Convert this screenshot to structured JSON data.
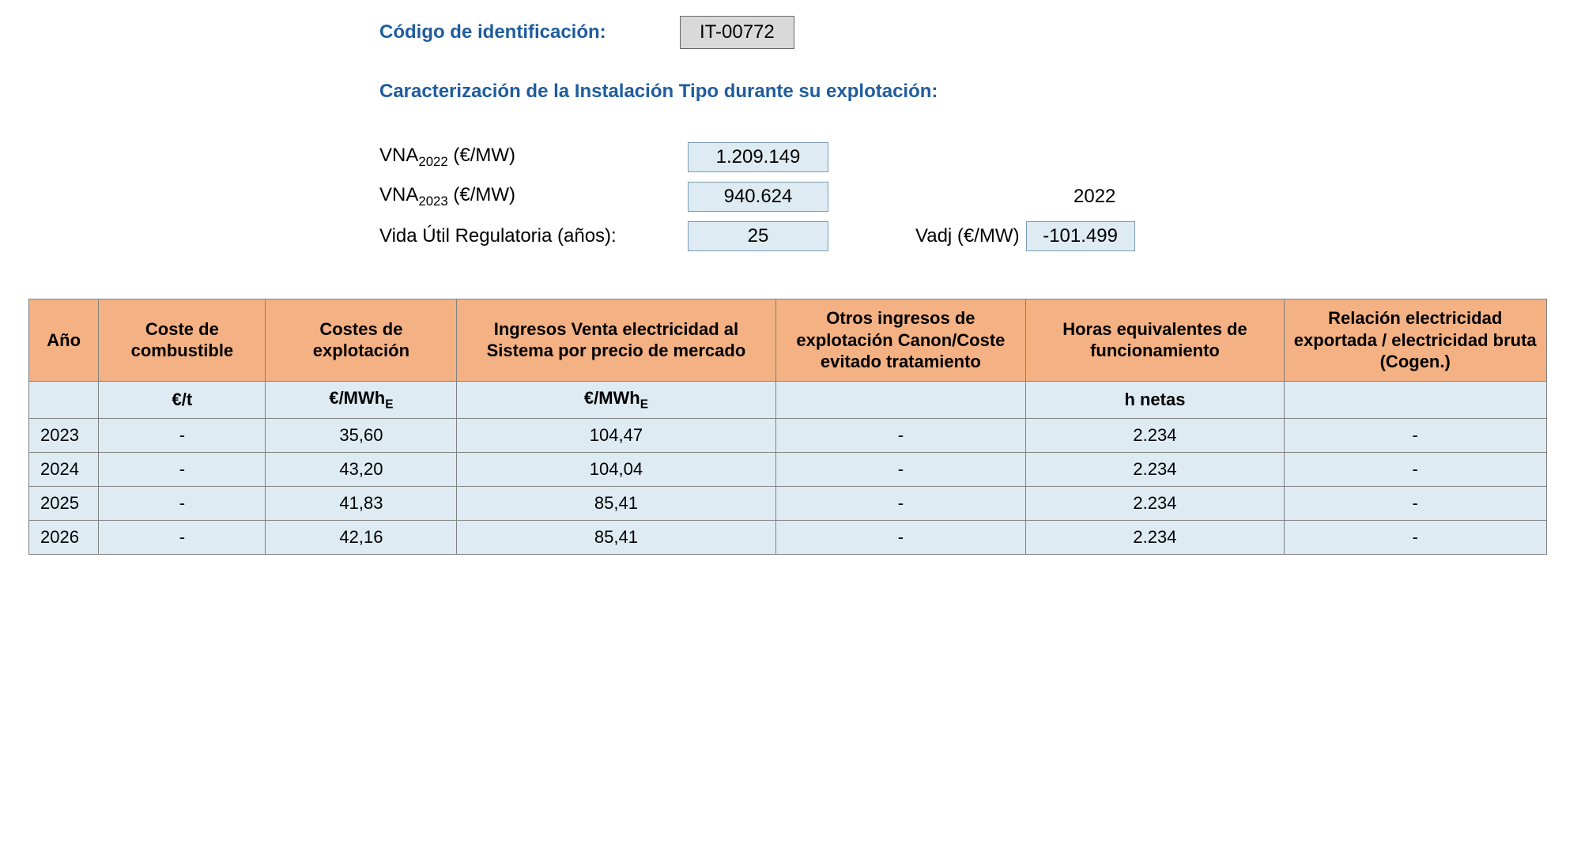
{
  "colors": {
    "heading": "#1f5c9e",
    "table_header_bg": "#f4b183",
    "cell_bg": "#deebf3",
    "border": "#808080",
    "id_box_bg": "#d9d9d9"
  },
  "identification": {
    "label": "Código de identificación:",
    "code": "IT-00772"
  },
  "section_title": "Caracterización de la Instalación Tipo durante su explotación:",
  "params": {
    "vna2022": {
      "label_prefix": "VNA",
      "label_sub": "2022",
      "label_suffix": " (€/MW)",
      "value": "1.209.149"
    },
    "vna2023": {
      "label_prefix": "VNA",
      "label_sub": "2023",
      "label_suffix": " (€/MW)",
      "value": "940.624",
      "right_year": "2022"
    },
    "vida": {
      "label": "Vida Útil Regulatoria (años):",
      "value": "25"
    },
    "vadj": {
      "label": "Vadj (€/MW)",
      "value": "-101.499"
    }
  },
  "table": {
    "headers": [
      "Año",
      "Coste de combustible",
      "Costes de explotación",
      "Ingresos Venta electricidad al Sistema por precio de mercado",
      "Otros ingresos de explotación Canon/Coste evitado tratamiento",
      "Horas equivalentes de funcionamiento",
      "Relación electricidad exportada / electricidad bruta\n(Cogen.)"
    ],
    "unit_row": [
      "",
      "€/t",
      "€/MWh",
      "€/MWh",
      "",
      "h netas",
      ""
    ],
    "unit_sub": {
      "2": "E",
      "3": "E"
    },
    "col_widths_pct": [
      4.6,
      11.0,
      12.6,
      21.0,
      16.5,
      17.0,
      17.3
    ],
    "rows": [
      {
        "year": "2023",
        "fuel": "-",
        "opex": "35,60",
        "income": "104,47",
        "other": "-",
        "hours": "2.234",
        "ratio": "-"
      },
      {
        "year": "2024",
        "fuel": "-",
        "opex": "43,20",
        "income": "104,04",
        "other": "-",
        "hours": "2.234",
        "ratio": "-"
      },
      {
        "year": "2025",
        "fuel": "-",
        "opex": "41,83",
        "income": "85,41",
        "other": "-",
        "hours": "2.234",
        "ratio": "-"
      },
      {
        "year": "2026",
        "fuel": "-",
        "opex": "42,16",
        "income": "85,41",
        "other": "-",
        "hours": "2.234",
        "ratio": "-"
      }
    ]
  }
}
